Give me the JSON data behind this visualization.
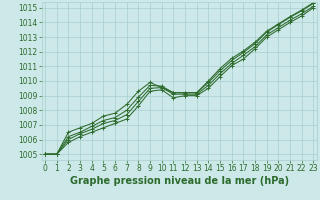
{
  "background_color": "#cce8e8",
  "plot_bg_color": "#cce8e8",
  "line_color": "#2d6b2d",
  "grid_color": "#a8cece",
  "xlabel": "Graphe pression niveau de la mer (hPa)",
  "xlabel_fontsize": 7.0,
  "xlabel_color": "#2d6b2d",
  "ytick_labels": [
    "1005",
    "1006",
    "1007",
    "1008",
    "1009",
    "1010",
    "1011",
    "1012",
    "1013",
    "1014",
    "1015"
  ],
  "yticks": [
    1005,
    1006,
    1007,
    1008,
    1009,
    1010,
    1011,
    1012,
    1013,
    1014,
    1015
  ],
  "ylim": [
    1004.6,
    1015.4
  ],
  "xticks": [
    0,
    1,
    2,
    3,
    4,
    5,
    6,
    7,
    8,
    9,
    10,
    11,
    12,
    13,
    14,
    15,
    16,
    17,
    18,
    19,
    20,
    21,
    22,
    23
  ],
  "xlim": [
    -0.3,
    23.3
  ],
  "tick_color": "#2d6b2d",
  "tick_fontsize": 5.5,
  "series": [
    [
      1005.0,
      1005.0,
      1005.8,
      1006.2,
      1006.5,
      1006.8,
      1007.1,
      1007.4,
      1008.3,
      1009.3,
      1009.4,
      1008.85,
      1009.0,
      1009.0,
      1009.5,
      1010.3,
      1011.05,
      1011.5,
      1012.2,
      1013.0,
      1013.5,
      1014.0,
      1014.45,
      1015.0
    ],
    [
      1005.0,
      1005.0,
      1006.0,
      1006.4,
      1006.7,
      1007.1,
      1007.3,
      1007.7,
      1008.6,
      1009.5,
      1009.55,
      1009.1,
      1009.1,
      1009.1,
      1009.7,
      1010.5,
      1011.2,
      1011.75,
      1012.35,
      1013.15,
      1013.65,
      1014.15,
      1014.6,
      1015.1
    ],
    [
      1005.0,
      1005.0,
      1006.2,
      1006.5,
      1006.9,
      1007.3,
      1007.5,
      1008.0,
      1008.9,
      1009.7,
      1009.65,
      1009.2,
      1009.2,
      1009.2,
      1009.9,
      1010.7,
      1011.4,
      1011.95,
      1012.55,
      1013.35,
      1013.85,
      1014.35,
      1014.8,
      1015.3
    ],
    [
      1005.0,
      1005.0,
      1006.5,
      1006.8,
      1007.1,
      1007.6,
      1007.8,
      1008.4,
      1009.3,
      1009.9,
      1009.55,
      1009.2,
      1009.2,
      1009.2,
      1010.0,
      1010.85,
      1011.55,
      1012.05,
      1012.65,
      1013.4,
      1013.9,
      1014.4,
      1014.85,
      1015.35
    ]
  ],
  "marker": "+",
  "marker_size": 3.5,
  "line_width": 0.75
}
